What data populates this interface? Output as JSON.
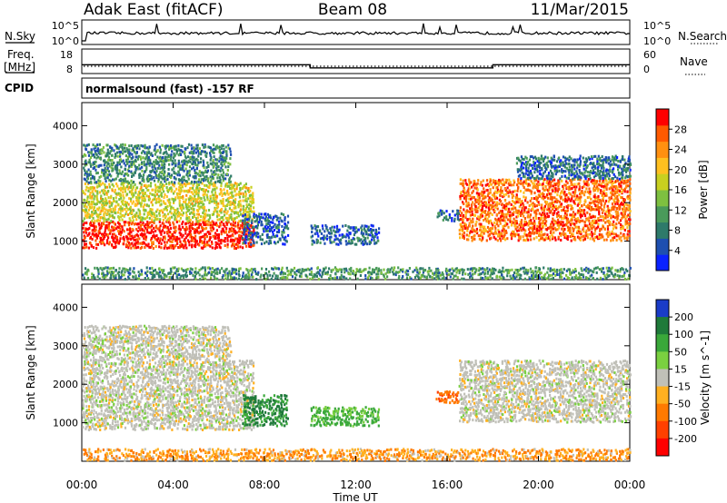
{
  "header": {
    "site": "Adak East (fitACF)",
    "beam": "Beam 08",
    "date": "11/Mar/2015"
  },
  "side_labels": {
    "nsky": "N.Sky",
    "nsearch": "N.Search",
    "freq_line1": "Freq.",
    "freq_line2": "[MHz]",
    "nave": "Nave",
    "cpid": "CPID"
  },
  "program": "normalsound (fast) -157 RF",
  "noise_panel": {
    "left_ticks": [
      "10^5",
      "10^0"
    ],
    "right_ticks": [
      "10^5",
      "10^0"
    ]
  },
  "freq_panel": {
    "left_ticks": [
      "18",
      "8"
    ],
    "right_ticks": [
      "60",
      "0"
    ],
    "steps": [
      {
        "from": 0,
        "to": 10,
        "freq_mhz": 11.6
      },
      {
        "from": 10,
        "to": 18,
        "freq_mhz": 10.3
      },
      {
        "from": 18,
        "to": 24,
        "freq_mhz": 11.6
      }
    ]
  },
  "chart_data": [
    {
      "type": "heatmap",
      "name": "power",
      "xlabel": "Time UT",
      "ylabel": "Slant Range [km]",
      "xlim": [
        0,
        24
      ],
      "ylim": [
        0,
        4600
      ],
      "x_tick_labels": [
        "00:00",
        "04:00",
        "08:00",
        "12:00",
        "16:00",
        "20:00",
        "00:00"
      ],
      "x_tick_values": [
        0,
        4,
        8,
        12,
        16,
        20,
        24
      ],
      "y_tick_values": [
        1000,
        2000,
        3000,
        4000
      ],
      "y_tick_labels": [
        "1000",
        "2000",
        "3000",
        "4000"
      ],
      "colorbar": {
        "label": "Power [dB]",
        "tick_labels": [
          "4",
          "8",
          "12",
          "16",
          "20",
          "24",
          "28"
        ],
        "tick_values": [
          4,
          8,
          12,
          16,
          20,
          24,
          28
        ],
        "range": [
          0,
          32
        ],
        "colors": [
          "#0a22ff",
          "#1e4fb0",
          "#2e7a6a",
          "#4a9a5a",
          "#7ec040",
          "#c8d020",
          "#ffc020",
          "#ff9010",
          "#ff5a00",
          "#ff0000"
        ]
      },
      "regions": [
        {
          "t0": 0.0,
          "t1": 7.5,
          "r0": 800,
          "r1": 1500,
          "power": 30
        },
        {
          "t0": 0.0,
          "t1": 7.5,
          "r0": 1500,
          "r1": 2500,
          "power": 18
        },
        {
          "t0": 0.0,
          "t1": 6.5,
          "r0": 2500,
          "r1": 3500,
          "power": 9
        },
        {
          "t0": 7.0,
          "t1": 9.0,
          "r0": 900,
          "r1": 1700,
          "power": 6
        },
        {
          "t0": 10.0,
          "t1": 13.0,
          "r0": 900,
          "r1": 1400,
          "power": 6
        },
        {
          "t0": 15.5,
          "t1": 16.5,
          "r0": 1500,
          "r1": 1800,
          "power": 6
        },
        {
          "t0": 16.5,
          "t1": 24.0,
          "r0": 1000,
          "r1": 2600,
          "power": 26
        },
        {
          "t0": 19.0,
          "t1": 24.0,
          "r0": 2600,
          "r1": 3200,
          "power": 7
        },
        {
          "t0": 0.0,
          "t1": 24.0,
          "r0": 0,
          "r1": 300,
          "power": 10
        }
      ]
    },
    {
      "type": "heatmap",
      "name": "velocity",
      "xlabel": "Time UT",
      "ylabel": "Slant Range [km]",
      "xlim": [
        0,
        24
      ],
      "ylim": [
        0,
        4600
      ],
      "x_tick_labels": [
        "00:00",
        "04:00",
        "08:00",
        "12:00",
        "16:00",
        "20:00",
        "00:00"
      ],
      "x_tick_values": [
        0,
        4,
        8,
        12,
        16,
        20,
        24
      ],
      "y_tick_values": [
        1000,
        2000,
        3000,
        4000
      ],
      "y_tick_labels": [
        "1000",
        "2000",
        "3000",
        "4000"
      ],
      "colorbar": {
        "label": "Velocity [m s^-1]",
        "tick_labels": [
          "200",
          "100",
          "50",
          "15",
          "-15",
          "-50",
          "-100",
          "-200"
        ],
        "colors": [
          "#1a3cc8",
          "#1f7a3a",
          "#3aa83a",
          "#7ad040",
          "#c0c0b8",
          "#ffb020",
          "#ff7a00",
          "#ff4000",
          "#ff0000"
        ]
      },
      "regions": [
        {
          "t0": 0.0,
          "t1": 7.5,
          "r0": 800,
          "r1": 2600,
          "velocity": 0
        },
        {
          "t0": 0.0,
          "t1": 6.5,
          "r0": 2600,
          "r1": 3500,
          "velocity": 0
        },
        {
          "t0": 7.0,
          "t1": 9.0,
          "r0": 900,
          "r1": 1700,
          "velocity": 80
        },
        {
          "t0": 10.0,
          "t1": 13.0,
          "r0": 900,
          "r1": 1400,
          "velocity": 40
        },
        {
          "t0": 15.5,
          "t1": 16.5,
          "r0": 1500,
          "r1": 1800,
          "velocity": -70
        },
        {
          "t0": 16.5,
          "t1": 24.0,
          "r0": 1000,
          "r1": 2600,
          "velocity": 0
        },
        {
          "t0": 0.0,
          "t1": 24.0,
          "r0": 0,
          "r1": 300,
          "velocity": -30
        }
      ]
    }
  ]
}
